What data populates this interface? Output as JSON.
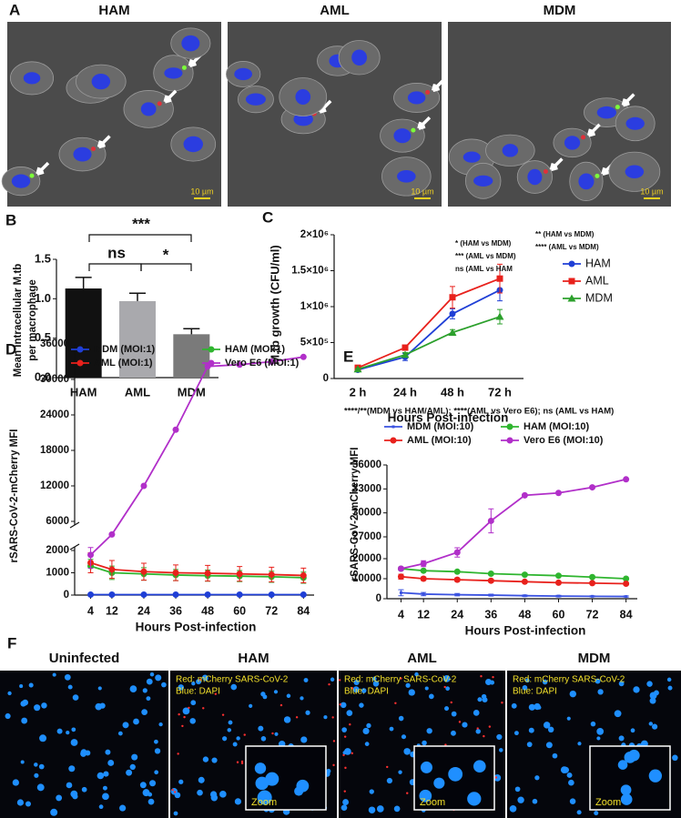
{
  "figure": {
    "panel_a": {
      "label": "A",
      "titles": [
        "HAM",
        "AML",
        "MDM"
      ],
      "scale_bar": "10 µm"
    },
    "panel_f": {
      "label": "F",
      "titles": [
        "Uninfected",
        "HAM",
        "AML",
        "MDM"
      ],
      "red_label": "Red: mCherry SARS-CoV-2",
      "blue_label": "Blue: DAPI",
      "zoom": "Zoom"
    }
  },
  "chart_data": [
    {
      "type": "bar",
      "panel": "B",
      "ylabel": [
        "Mean intracellular M.tb",
        "per macrophage"
      ],
      "categories": [
        "HAM",
        "AML",
        "MDM"
      ],
      "values": [
        1.13,
        0.97,
        0.55
      ],
      "errors": [
        0.14,
        0.1,
        0.07
      ],
      "colors": [
        "#111111",
        "#a9a9ad",
        "#7a7a7a"
      ],
      "ylim": [
        0,
        1.5
      ],
      "yticks": [
        {
          "value": 0,
          "label": "0.0"
        },
        0.5,
        {
          "value": 1,
          "label": "1.0"
        },
        1.5
      ],
      "annotations": [
        "***",
        "ns",
        "*"
      ]
    },
    {
      "type": "line",
      "panel": "C",
      "ylabel": [
        "M.tb growth (CFU/ml)"
      ],
      "xlabel": "Hours Post-infection",
      "categories": [
        "2 h",
        "24 h",
        "48 h",
        "72 h"
      ],
      "series": [
        {
          "name": "HAM",
          "color": "#1f3fd6",
          "marker": "circle",
          "values": [
            120000,
            300000,
            900000,
            1230000
          ],
          "errors": [
            20000,
            50000,
            70000,
            150000
          ]
        },
        {
          "name": "AML",
          "color": "#e8211c",
          "marker": "square",
          "values": [
            150000,
            430000,
            1130000,
            1390000
          ],
          "errors": [
            20000,
            30000,
            150000,
            200000
          ]
        },
        {
          "name": "MDM",
          "color": "#2ca02c",
          "marker": "triangle",
          "values": [
            130000,
            330000,
            640000,
            860000
          ],
          "errors": [
            10000,
            30000,
            40000,
            100000
          ]
        }
      ],
      "ylim": [
        0,
        2000000
      ],
      "yticks": [
        0,
        {
          "value": 500000,
          "label": "5×10⁵"
        },
        {
          "value": 1000000,
          "label": "1×10⁶"
        },
        {
          "value": 1500000,
          "label": "1.5×10⁶"
        },
        {
          "value": 2000000,
          "label": "2×10⁶"
        }
      ],
      "annotations": [
        "* (HAM vs MDM)",
        "*** (AML vs MDM)",
        "ns  (AML vs HAM",
        "** (HAM vs MDM)",
        "**** (AML vs MDM)"
      ]
    },
    {
      "type": "line",
      "panel": "D",
      "ylabel": [
        "rSARS-CoV-2-mCherry MFI"
      ],
      "xlabel": "Hours Post-infection",
      "x": [
        4,
        12,
        24,
        36,
        48,
        60,
        72,
        84
      ],
      "xlim": [
        -2,
        88
      ],
      "xticks": [
        4,
        12,
        24,
        36,
        48,
        60,
        72,
        84
      ],
      "series": [
        {
          "name": "MDM (MOI:1)",
          "color": "#1f3fd6",
          "marker": "circle",
          "values": [
            20,
            20,
            20,
            20,
            20,
            20,
            20,
            20
          ]
        },
        {
          "name": "HAM (MOI:1)",
          "color": "#2fb52f",
          "marker": "circle",
          "values": [
            1300,
            1000,
            950,
            900,
            870,
            850,
            820,
            780
          ],
          "errors": [
            300,
            300,
            280,
            250,
            250,
            250,
            250,
            250
          ]
        },
        {
          "name": "AML (MOI:1)",
          "color": "#e8211c",
          "marker": "circle",
          "values": [
            1450,
            1150,
            1050,
            1000,
            980,
            950,
            920,
            880
          ],
          "errors": [
            450,
            400,
            380,
            350,
            350,
            330,
            330,
            330
          ]
        },
        {
          "name": "Vero E6 (MOI:1)",
          "color": "#b12fc9",
          "marker": "circle",
          "values": [
            1800,
            4200,
            12000,
            21500,
            32200,
            32500,
            33000,
            33800
          ],
          "errors": [
            600,
            0,
            0,
            0,
            0,
            0,
            0,
            0
          ]
        }
      ],
      "ylim": [
        0,
        36000
      ],
      "ybreak": [
        2000,
        6000
      ],
      "yticks": [
        0,
        1000,
        2000,
        6000,
        12000,
        18000,
        24000,
        30000,
        36000
      ]
    },
    {
      "type": "line",
      "panel": "E",
      "ylabel": [
        "rSARS-CoV-2-mCherry MFI"
      ],
      "xlabel": "Hours Post-infection",
      "x": [
        4,
        12,
        24,
        36,
        48,
        60,
        72,
        84
      ],
      "xlim": [
        -1,
        88
      ],
      "xticks": [
        4,
        12,
        24,
        36,
        48,
        60,
        72,
        84
      ],
      "series": [
        {
          "name": "MDM (MOI:10)",
          "color": "#3a52e0",
          "marker": "line",
          "values": [
            3000,
            2300,
            2000,
            1800,
            1500,
            1300,
            1200,
            1100
          ],
          "errors": [
            1500,
            800,
            600,
            500,
            400,
            400,
            300,
            300
          ]
        },
        {
          "name": "HAM (MOI:10)",
          "color": "#2fb52f",
          "marker": "circle",
          "values": [
            15000,
            14000,
            13500,
            12500,
            12000,
            11500,
            10800,
            10000
          ]
        },
        {
          "name": "AML (MOI:10)",
          "color": "#e8211c",
          "marker": "circle",
          "values": [
            11000,
            10000,
            9500,
            9000,
            8500,
            8000,
            7800,
            7500
          ],
          "errors": [
            1200,
            900,
            800,
            700,
            600,
            600,
            500,
            500
          ]
        },
        {
          "name": "Vero E6 (MOI:10)",
          "color": "#b12fc9",
          "marker": "circle",
          "values": [
            15000,
            17500,
            22000,
            29000,
            32200,
            32500,
            33200,
            34200
          ],
          "errors": [
            800,
            1500,
            1500,
            1500,
            0,
            0,
            0,
            0
          ]
        }
      ],
      "ylim": [
        0,
        36000
      ],
      "ybreak": [
        20000,
        27000
      ],
      "yticks": [
        0,
        10000,
        20000,
        27000,
        30000,
        33000,
        36000
      ],
      "annotations": [
        "****/**(MDM vs HAM/AML); ****(AML vs Vero E6); ns (AML vs HAM)"
      ]
    }
  ]
}
